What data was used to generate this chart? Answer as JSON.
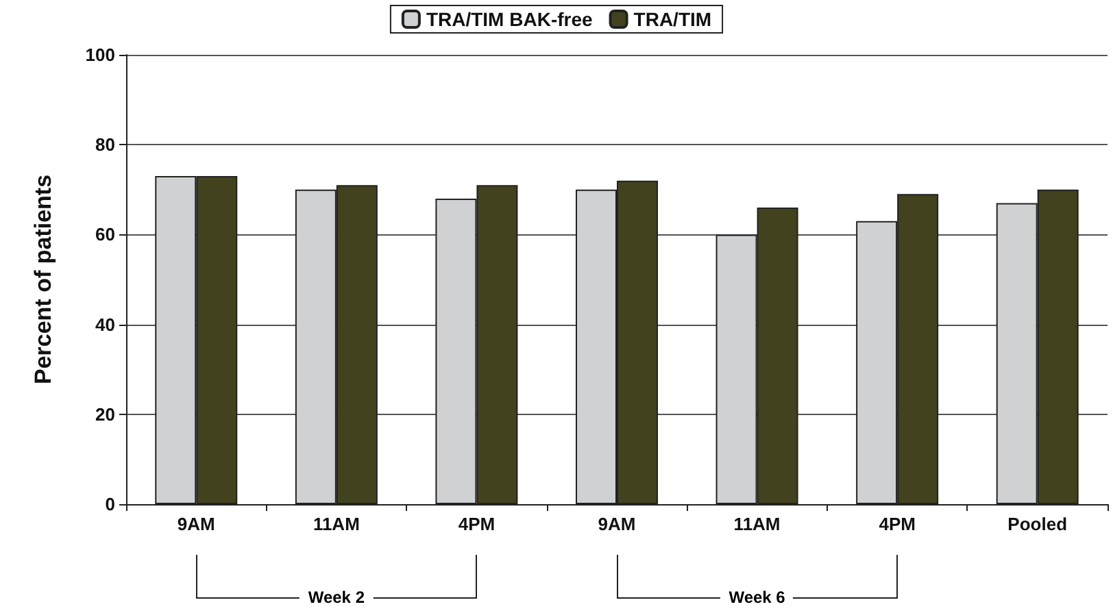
{
  "chart_data": {
    "type": "bar",
    "ylabel": "Percent of patients",
    "categories": [
      "9AM",
      "11AM",
      "4PM",
      "9AM",
      "11AM",
      "4PM",
      "Pooled"
    ],
    "series": [
      {
        "name": "TRA/TIM BAK-free",
        "color": "#d0d1d3",
        "values": [
          73,
          70,
          68,
          70,
          60,
          63,
          67
        ]
      },
      {
        "name": "TRA/TIM",
        "color": "#42421e",
        "values": [
          73,
          71,
          71,
          72,
          66,
          69,
          70
        ]
      }
    ],
    "ylim": [
      0,
      100
    ],
    "yticks": [
      0,
      20,
      40,
      60,
      80,
      100
    ],
    "grid": "y",
    "legend": "top",
    "annotations": [
      "Week 2",
      "Week 6"
    ]
  }
}
